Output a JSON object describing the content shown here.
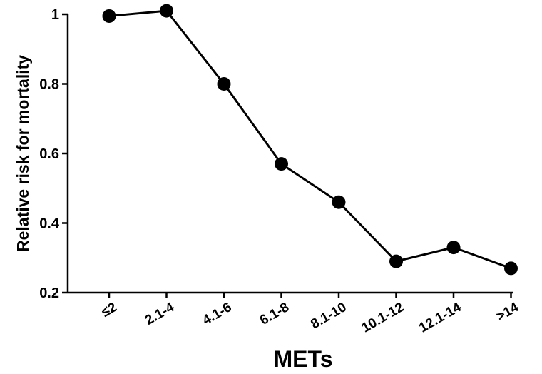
{
  "chart_data": {
    "type": "line",
    "title": "",
    "xlabel": "METs",
    "ylabel": "Relative risk for mortality",
    "categories": [
      "≤2",
      "2.1-4",
      "4.1-6",
      "6.1-8",
      "8.1-10",
      "10.1-12",
      "12.1-14",
      ">14"
    ],
    "series": [
      {
        "values": [
          0.995,
          1.01,
          0.8,
          0.57,
          0.46,
          0.29,
          0.33,
          0.27
        ]
      }
    ],
    "ylim": [
      0.2,
      1.0
    ],
    "yticks": [
      "0.2",
      "0.4",
      "0.6",
      "0.8",
      "1"
    ],
    "grid": false,
    "legend": "none",
    "colors": {
      "line": "#000000",
      "marker": "#000000"
    }
  }
}
